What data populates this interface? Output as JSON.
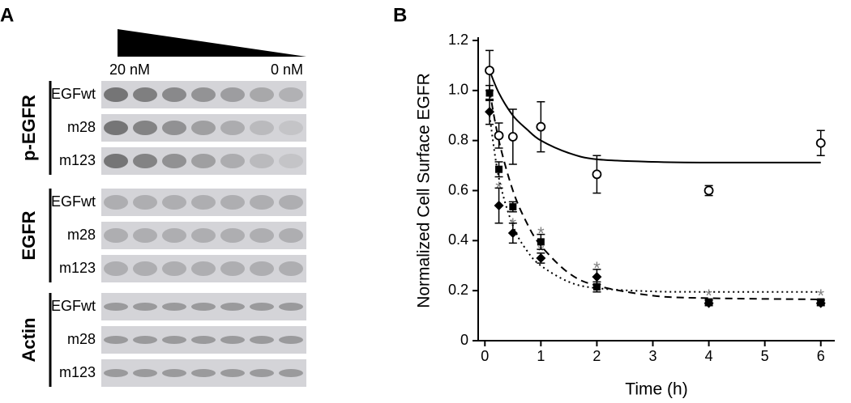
{
  "panel_a": {
    "label": "A",
    "concentration_high": "20 nM",
    "concentration_low": "0 nM",
    "groups": [
      {
        "label": "p-EGFR",
        "rows": [
          "EGFwt",
          "m28",
          "m123"
        ]
      },
      {
        "label": "EGFR",
        "rows": [
          "EGFwt",
          "m28",
          "m123"
        ]
      },
      {
        "label": "Actin",
        "rows": [
          "EGFwt",
          "m28",
          "m123"
        ]
      }
    ]
  },
  "chart_data": {
    "type": "scatter",
    "panel_label": "B",
    "xlabel": "Time (h)",
    "ylabel": "Normalized Cell Surface EGFR",
    "x": [
      0.083,
      0.25,
      0.5,
      1,
      2,
      4,
      6
    ],
    "series": [
      {
        "marker": "circle-open",
        "color": "#000000",
        "values": [
          1.08,
          0.82,
          0.815,
          0.855,
          0.665,
          0.6,
          0.79
        ],
        "errors": [
          0.08,
          0.05,
          0.11,
          0.1,
          0.075,
          0.02,
          0.05
        ]
      },
      {
        "marker": "square",
        "color": "#000000",
        "values": [
          0.99,
          0.685,
          0.535,
          0.395,
          0.215,
          0.155,
          0.155
        ],
        "errors": [
          0.03,
          0.03,
          0.02,
          0.03,
          0.02,
          0.01,
          0.01
        ]
      },
      {
        "marker": "diamond",
        "color": "#000000",
        "values": [
          0.915,
          0.54,
          0.43,
          0.33,
          0.255,
          0.15,
          0.15
        ],
        "errors": [
          0.05,
          0.07,
          0.04,
          0.02,
          0.03,
          0.01,
          0.01
        ]
      }
    ],
    "fits": [
      {
        "style": "solid",
        "x": [
          0.083,
          0.25,
          0.5,
          0.75,
          1,
          1.5,
          2,
          3,
          4,
          6
        ],
        "values": [
          1.08,
          0.99,
          0.9,
          0.845,
          0.8,
          0.75,
          0.725,
          0.715,
          0.712,
          0.712
        ]
      },
      {
        "style": "dashed",
        "x": [
          0.083,
          0.25,
          0.5,
          0.75,
          1,
          1.5,
          2,
          3,
          4,
          6
        ],
        "values": [
          1.0,
          0.8,
          0.6,
          0.47,
          0.38,
          0.27,
          0.22,
          0.18,
          0.17,
          0.165
        ]
      },
      {
        "style": "dotted",
        "x": [
          0.083,
          0.25,
          0.5,
          0.75,
          1,
          1.5,
          2,
          3,
          4,
          6
        ],
        "values": [
          0.9,
          0.65,
          0.46,
          0.36,
          0.3,
          0.235,
          0.21,
          0.197,
          0.195,
          0.195
        ]
      }
    ],
    "annotations": [
      {
        "text": "*",
        "x": 0.25,
        "y": 0.62
      },
      {
        "text": "*",
        "x": 0.5,
        "y": 0.475
      },
      {
        "text": "*",
        "x": 1,
        "y": 0.44
      },
      {
        "text": "*",
        "x": 1,
        "y": 0.37
      },
      {
        "text": "*",
        "x": 2,
        "y": 0.3
      },
      {
        "text": "*",
        "x": 4,
        "y": 0.19
      },
      {
        "text": "*",
        "x": 6,
        "y": 0.19
      }
    ],
    "annotation_color": "#808080",
    "xlim": [
      -0.12,
      6.25
    ],
    "ylim": [
      0,
      1.2
    ],
    "xticks": [
      0,
      1,
      2,
      3,
      4,
      5,
      6
    ],
    "yticks": [
      0,
      0.2,
      0.4,
      0.6,
      0.8,
      {
        "value": 1,
        "label": "1.0"
      },
      1.2
    ]
  }
}
